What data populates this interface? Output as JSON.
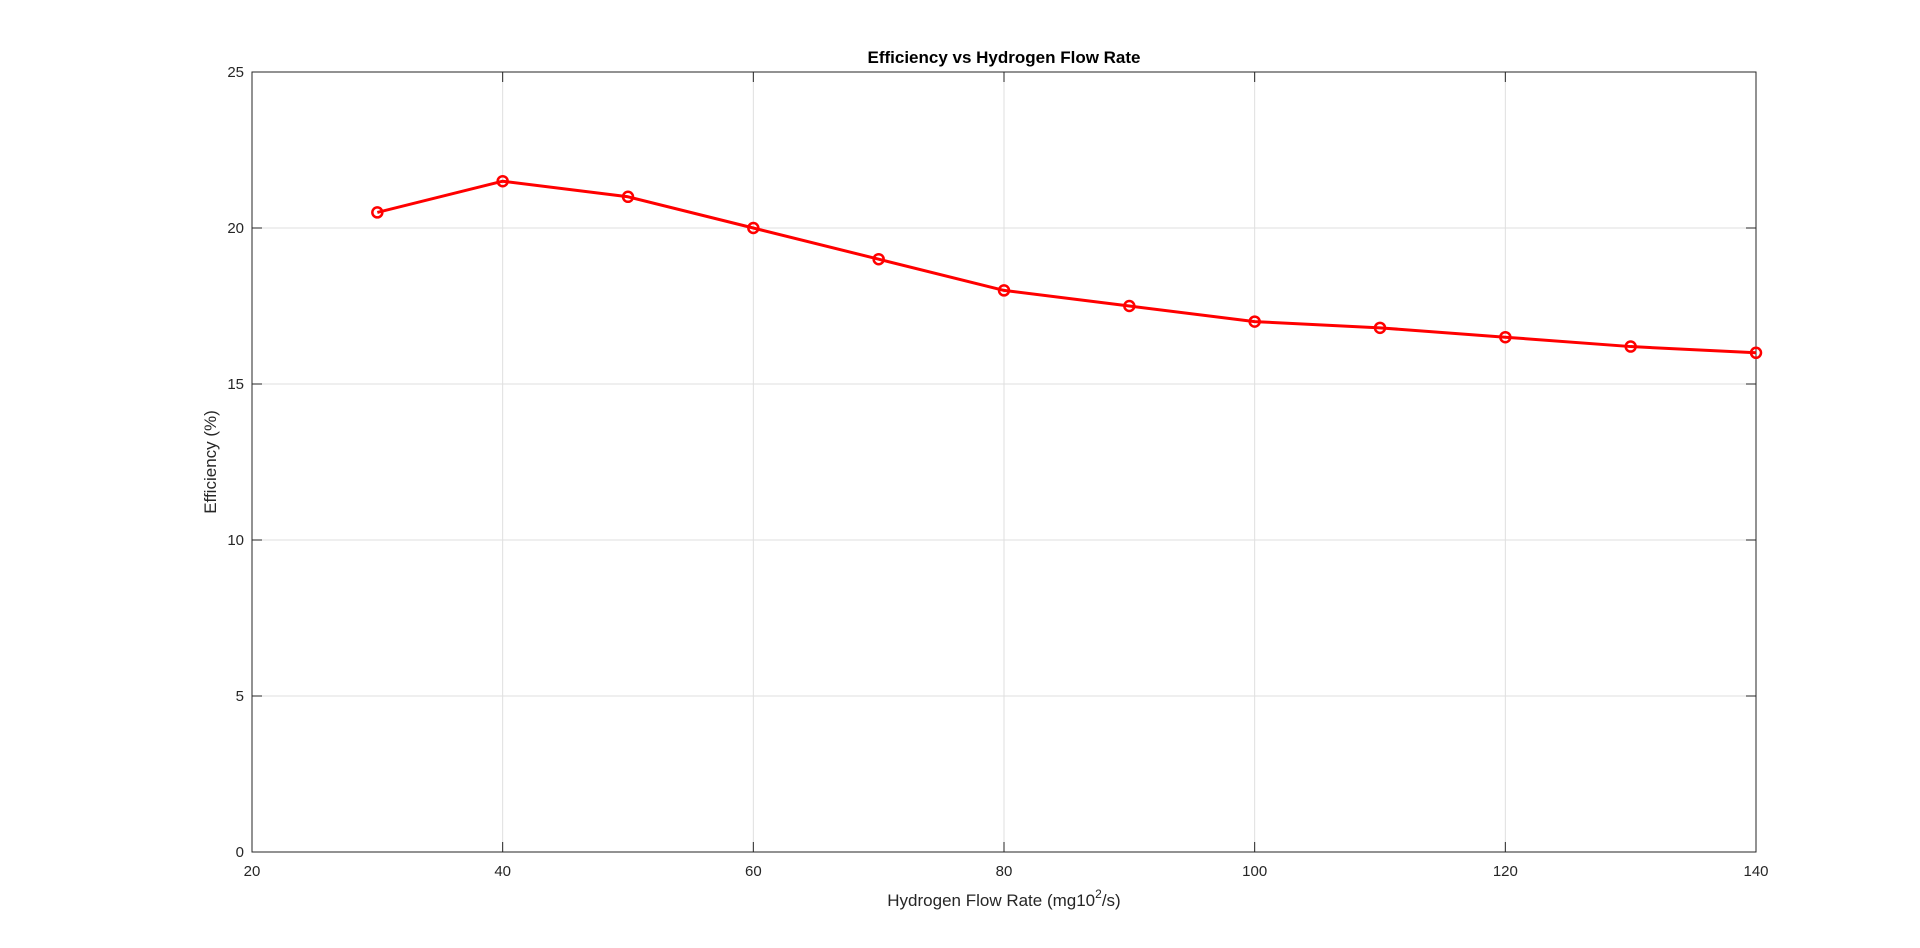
{
  "chart_data": {
    "type": "line",
    "title": "Efficiency vs Hydrogen Flow Rate",
    "xlabel_main": "Hydrogen Flow Rate (mg10",
    "xlabel_sup": "2",
    "xlabel_tail": "/s)",
    "ylabel": "Efficiency (%)",
    "xlim": [
      20,
      140
    ],
    "ylim": [
      0,
      25
    ],
    "xticks": [
      20,
      40,
      60,
      80,
      100,
      120,
      140
    ],
    "yticks": [
      0,
      5,
      10,
      15,
      20,
      25
    ],
    "grid": true,
    "series": [
      {
        "x": [
          30,
          40,
          50,
          60,
          70,
          80,
          90,
          100,
          110,
          120,
          130,
          140
        ],
        "y": [
          20.5,
          21.5,
          21.0,
          20.0,
          19.0,
          18.0,
          17.5,
          17.0,
          16.8,
          16.5,
          16.2,
          16.0
        ],
        "color": "#ff0000",
        "marker": "circle"
      }
    ]
  }
}
